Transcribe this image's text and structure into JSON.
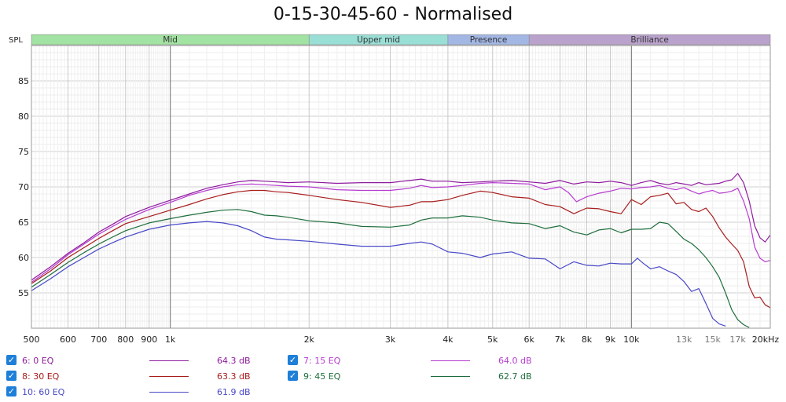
{
  "chart_data": {
    "type": "line",
    "title": "0-15-30-45-60 - Normalised",
    "ylabel": "SPL",
    "xlabel": "",
    "xscale": "log",
    "xlim": [
      500,
      20000
    ],
    "ylim": [
      50,
      90
    ],
    "y_ticks": [
      55,
      60,
      65,
      70,
      75,
      80,
      85
    ],
    "x_ticks": [
      {
        "v": 500,
        "label": "500"
      },
      {
        "v": 600,
        "label": "600"
      },
      {
        "v": 700,
        "label": "700"
      },
      {
        "v": 800,
        "label": "800"
      },
      {
        "v": 900,
        "label": "900"
      },
      {
        "v": 1000,
        "label": "1k"
      },
      {
        "v": 2000,
        "label": "2k"
      },
      {
        "v": 3000,
        "label": "3k"
      },
      {
        "v": 4000,
        "label": "4k"
      },
      {
        "v": 5000,
        "label": "5k"
      },
      {
        "v": 6000,
        "label": "6k"
      },
      {
        "v": 7000,
        "label": "7k"
      },
      {
        "v": 8000,
        "label": "8k"
      },
      {
        "v": 9000,
        "label": "9k"
      },
      {
        "v": 10000,
        "label": "10k"
      },
      {
        "v": 13000,
        "label": "13k"
      },
      {
        "v": 15000,
        "label": "15k"
      },
      {
        "v": 17000,
        "label": "17k"
      },
      {
        "v": 20000,
        "label": "20kHz"
      }
    ],
    "grid": true,
    "bands": [
      {
        "name": "Mid",
        "from": 500,
        "to": 2000,
        "color": "#a2e2a2"
      },
      {
        "name": "Upper mid",
        "from": 2000,
        "to": 4000,
        "color": "#9adfd6"
      },
      {
        "name": "Presence",
        "from": 4000,
        "to": 6000,
        "color": "#a2b7e4"
      },
      {
        "name": "Brilliance",
        "from": 6000,
        "to": 20000,
        "color": "#b9a2cc"
      }
    ],
    "series": [
      {
        "name": "6: 0 EQ",
        "value_label": "64.3 dB",
        "color": "#8e1a9e",
        "x": [
          500,
          550,
          600,
          650,
          700,
          750,
          800,
          900,
          1000,
          1100,
          1200,
          1300,
          1400,
          1500,
          1600,
          1700,
          1800,
          2000,
          2300,
          2600,
          3000,
          3300,
          3500,
          3700,
          4000,
          4300,
          4700,
          5000,
          5500,
          6000,
          6500,
          7000,
          7500,
          8000,
          8500,
          9000,
          9500,
          10000,
          10500,
          11000,
          11500,
          12000,
          12500,
          13000,
          13500,
          14000,
          14500,
          15000,
          15500,
          16000,
          16500,
          17000,
          17500,
          18000,
          18500,
          19000,
          19500,
          20000
        ],
        "y": [
          56.8,
          58.7,
          60.6,
          62.1,
          63.6,
          64.7,
          65.8,
          67.1,
          68.1,
          69.0,
          69.8,
          70.3,
          70.7,
          70.9,
          70.8,
          70.7,
          70.6,
          70.7,
          70.5,
          70.6,
          70.6,
          70.9,
          71.1,
          70.8,
          70.8,
          70.6,
          70.7,
          70.8,
          70.9,
          70.7,
          70.5,
          70.9,
          70.4,
          70.7,
          70.6,
          70.8,
          70.6,
          70.2,
          70.6,
          70.9,
          70.5,
          70.3,
          70.6,
          70.4,
          70.2,
          70.6,
          70.3,
          70.4,
          70.5,
          70.8,
          71.0,
          71.9,
          70.6,
          68.0,
          64.5,
          62.8,
          62.2,
          63.2
        ]
      },
      {
        "name": "7: 15 EQ",
        "value_label": "64.0 dB",
        "color": "#b63bd0",
        "x": [
          500,
          550,
          600,
          650,
          700,
          750,
          800,
          900,
          1000,
          1100,
          1200,
          1300,
          1400,
          1500,
          1600,
          1700,
          1800,
          2000,
          2300,
          2600,
          3000,
          3300,
          3500,
          3700,
          4000,
          4300,
          4700,
          5000,
          5500,
          6000,
          6500,
          7000,
          7300,
          7600,
          8000,
          8500,
          9000,
          9500,
          10000,
          10500,
          11000,
          11500,
          12000,
          12500,
          13000,
          13500,
          14000,
          14500,
          15000,
          15500,
          16000,
          16500,
          17000,
          17500,
          18000,
          18500,
          19000,
          19500,
          20000
        ],
        "y": [
          56.5,
          58.4,
          60.4,
          61.9,
          63.3,
          64.4,
          65.4,
          66.8,
          67.8,
          68.8,
          69.5,
          70.0,
          70.3,
          70.4,
          70.3,
          70.2,
          70.1,
          70.0,
          69.6,
          69.5,
          69.5,
          69.8,
          70.2,
          69.9,
          70.0,
          70.2,
          70.5,
          70.6,
          70.5,
          70.4,
          69.6,
          70.0,
          69.2,
          67.9,
          68.6,
          69.1,
          69.4,
          69.8,
          69.7,
          69.9,
          70.0,
          70.2,
          69.8,
          69.6,
          69.9,
          69.4,
          69.0,
          69.3,
          69.5,
          69.1,
          69.2,
          69.4,
          69.8,
          68.0,
          65.5,
          61.5,
          59.9,
          59.4,
          59.6
        ]
      },
      {
        "name": "8: 30 EQ",
        "value_label": "63.3 dB",
        "color": "#a81c1c",
        "x": [
          500,
          550,
          600,
          650,
          700,
          750,
          800,
          900,
          1000,
          1100,
          1200,
          1300,
          1400,
          1500,
          1600,
          1700,
          1800,
          2000,
          2300,
          2600,
          3000,
          3300,
          3500,
          3700,
          4000,
          4300,
          4700,
          5000,
          5500,
          6000,
          6500,
          7000,
          7500,
          8000,
          8500,
          9000,
          9500,
          10000,
          10500,
          11000,
          11500,
          12000,
          12500,
          13000,
          13500,
          14000,
          14500,
          15000,
          15500,
          16000,
          16500,
          17000,
          17500,
          18000,
          18500,
          19000,
          19500,
          20000
        ],
        "y": [
          56.3,
          58.1,
          60.0,
          61.4,
          62.7,
          63.8,
          64.8,
          65.8,
          66.7,
          67.5,
          68.3,
          68.9,
          69.3,
          69.5,
          69.5,
          69.3,
          69.2,
          68.8,
          68.2,
          67.8,
          67.1,
          67.4,
          67.9,
          67.9,
          68.2,
          68.8,
          69.4,
          69.2,
          68.6,
          68.4,
          67.5,
          67.2,
          66.2,
          67.0,
          66.9,
          66.5,
          66.2,
          68.2,
          67.5,
          68.6,
          68.8,
          69.1,
          67.6,
          67.8,
          66.8,
          66.5,
          67.0,
          65.8,
          64.2,
          62.9,
          61.9,
          61.0,
          59.4,
          55.9,
          54.3,
          54.4,
          53.3,
          52.9
        ]
      },
      {
        "name": "9: 45 EQ",
        "value_label": "62.7 dB",
        "color": "#1d6e3c",
        "x": [
          500,
          550,
          600,
          650,
          700,
          750,
          800,
          900,
          1000,
          1100,
          1200,
          1300,
          1400,
          1500,
          1600,
          1700,
          1800,
          2000,
          2300,
          2600,
          3000,
          3300,
          3500,
          3700,
          4000,
          4300,
          4700,
          5000,
          5500,
          6000,
          6500,
          7000,
          7500,
          8000,
          8500,
          9000,
          9500,
          10000,
          10500,
          11000,
          11500,
          12000,
          12500,
          13000,
          13500,
          14000,
          14500,
          15000,
          15500,
          16000,
          16500,
          17000,
          17500,
          18000
        ],
        "y": [
          55.8,
          57.6,
          59.3,
          60.7,
          61.9,
          62.9,
          63.8,
          64.9,
          65.5,
          66.0,
          66.4,
          66.7,
          66.8,
          66.5,
          66.0,
          65.9,
          65.7,
          65.2,
          64.9,
          64.4,
          64.3,
          64.6,
          65.3,
          65.6,
          65.6,
          65.9,
          65.7,
          65.3,
          64.9,
          64.8,
          64.1,
          64.5,
          63.6,
          63.2,
          63.9,
          64.1,
          63.5,
          64.0,
          64.0,
          64.1,
          65.0,
          64.8,
          63.7,
          62.6,
          62.0,
          61.1,
          60.0,
          58.7,
          57.2,
          55.0,
          52.6,
          51.2,
          50.5,
          50.1
        ]
      },
      {
        "name": "10: 60 EQ",
        "value_label": "61.9 dB",
        "color": "#4848c8",
        "x": [
          500,
          550,
          600,
          650,
          700,
          750,
          800,
          900,
          1000,
          1100,
          1200,
          1300,
          1400,
          1500,
          1600,
          1700,
          1800,
          2000,
          2300,
          2600,
          3000,
          3300,
          3500,
          3700,
          4000,
          4300,
          4700,
          5000,
          5500,
          6000,
          6500,
          7000,
          7500,
          8000,
          8500,
          9000,
          9500,
          10000,
          10300,
          10600,
          11000,
          11500,
          12000,
          12500,
          13000,
          13500,
          14000,
          14500,
          15000,
          15500,
          16000
        ],
        "y": [
          55.3,
          57.0,
          58.7,
          60.0,
          61.2,
          62.1,
          62.9,
          64.0,
          64.6,
          64.9,
          65.1,
          64.9,
          64.5,
          63.8,
          62.9,
          62.6,
          62.5,
          62.3,
          61.9,
          61.6,
          61.6,
          62.0,
          62.2,
          61.9,
          60.8,
          60.6,
          60.0,
          60.5,
          60.8,
          59.9,
          59.8,
          58.4,
          59.4,
          58.9,
          58.8,
          59.2,
          59.1,
          59.1,
          59.9,
          59.2,
          58.4,
          58.7,
          58.1,
          57.6,
          56.6,
          55.2,
          55.6,
          53.5,
          51.4,
          50.6,
          50.3
        ]
      }
    ]
  }
}
